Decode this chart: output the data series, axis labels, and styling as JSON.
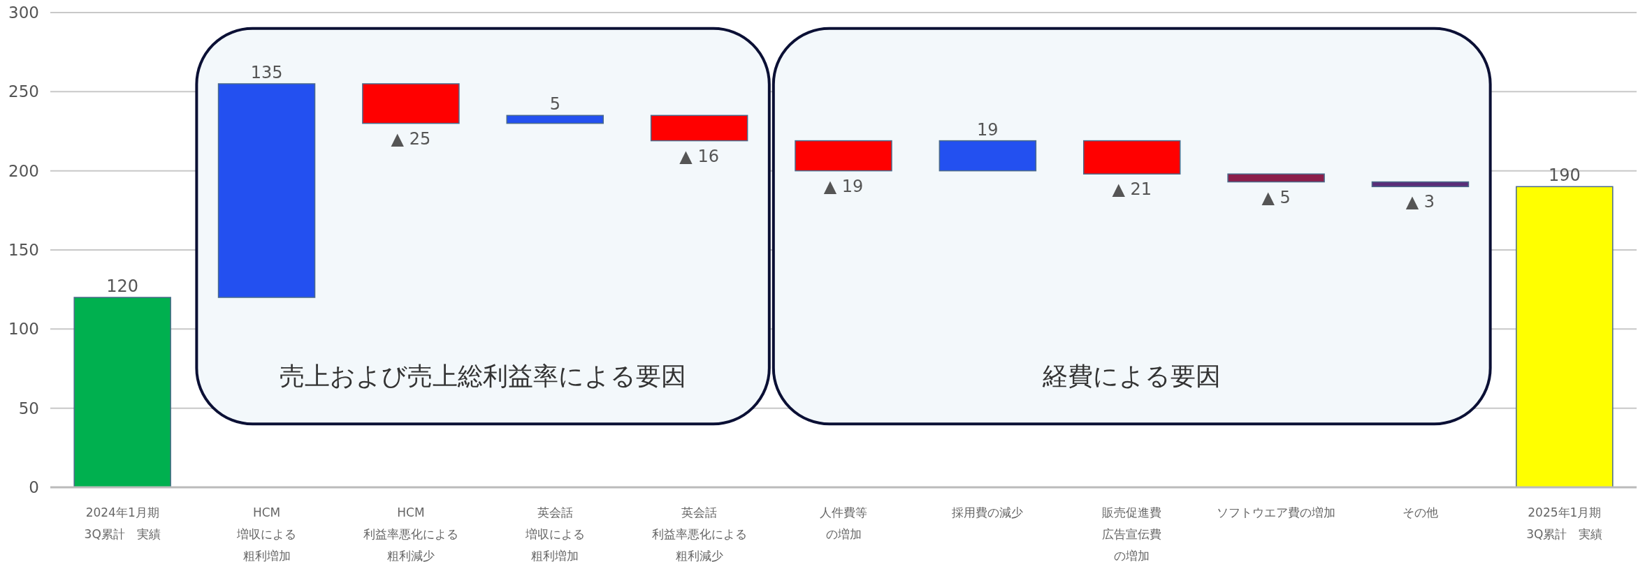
{
  "chart_data": {
    "type": "bar",
    "categories": [
      "2024年1月期3Q累計　実績",
      "HCM増収による粗利増加",
      "HCM利益率悪化による粗利減少",
      "英会話増収による粗利増加",
      "英会話利益率悪化による粗利減少",
      "人件費等の増加",
      "採用費の減少",
      "販売促進費広告宣伝費の増加",
      "ソフトウエア費の増加",
      "その他",
      "2025年1月期3Q累計　実績"
    ],
    "values": [
      120,
      135,
      -25,
      5,
      -16,
      -19,
      19,
      -21,
      -5,
      -3,
      190
    ],
    "base": [
      0,
      120,
      255,
      230,
      235,
      219,
      200,
      219,
      198,
      193,
      0
    ],
    "colors": [
      "#00b04f",
      "#2350f0",
      "#ff0000",
      "#2350f0",
      "#ff0000",
      "#ff0000",
      "#2350f0",
      "#ff0000",
      "#8b1e4a",
      "#5a2d78",
      "#ffff00"
    ],
    "value_labels": [
      "120",
      "135",
      "▲ 25",
      "5",
      "▲ 16",
      "▲ 19",
      "19",
      "▲ 21",
      "▲ 5",
      "▲ 3",
      "190"
    ],
    "annotations": [
      "売上および売上総利益率による要因",
      "経費による要因"
    ],
    "ylim": [
      0,
      300
    ],
    "yticks": [
      0,
      50,
      100,
      150,
      200,
      250,
      300
    ],
    "grid": "y"
  }
}
